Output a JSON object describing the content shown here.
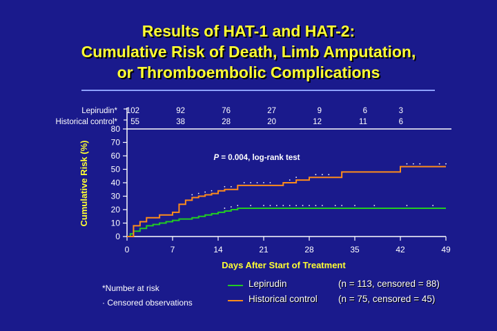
{
  "title": {
    "line1": "Results of HAT-1 and HAT-2:",
    "line2": "Cumulative Risk of Death, Limb Amputation,",
    "line3": "or Thromboembolic Complications"
  },
  "colors": {
    "background": "#1a1a8c",
    "title": "#ffff33",
    "lepirudin": "#22cc22",
    "historical": "#ff8c1a",
    "axis": "#ffffff",
    "rule": "#8ea2ff"
  },
  "risk_table": {
    "rows": [
      {
        "label": "Lepirudin*",
        "values": [
          "102",
          "92",
          "76",
          "27",
          "9",
          "6",
          "3"
        ]
      },
      {
        "label": "Historical control*",
        "values": [
          "55",
          "38",
          "28",
          "20",
          "12",
          "11",
          "6"
        ]
      }
    ]
  },
  "annotation": {
    "p_symbol": "P",
    "p_text": " = 0.004, log-rank test"
  },
  "notes": {
    "at_risk": "*Number at risk",
    "censored_marker": "·",
    "censored": "Censored observations"
  },
  "legend": [
    {
      "name": "Lepirudin",
      "n": "(n = 113, censored = 88)",
      "color": "#22cc22"
    },
    {
      "name": "Historical control",
      "n": "(n = 75, censored = 45)",
      "color": "#ff8c1a"
    }
  ],
  "chart_data": {
    "type": "line",
    "step": true,
    "xlabel": "Days After Start of Treatment",
    "ylabel": "Cumulative Risk (%)",
    "xlim": [
      0,
      49
    ],
    "ylim": [
      0,
      80
    ],
    "xticks": [
      0,
      7,
      14,
      21,
      28,
      35,
      42,
      49
    ],
    "yticks": [
      0,
      10,
      20,
      30,
      40,
      50,
      60,
      70,
      80
    ],
    "series": [
      {
        "name": "Lepirudin",
        "color": "#22cc22",
        "x": [
          0,
          0.5,
          1,
          2,
          3,
          4,
          5,
          6,
          7,
          8,
          10,
          11,
          12,
          13,
          14,
          15,
          16,
          17,
          18,
          21,
          49
        ],
        "y": [
          0,
          2,
          4,
          6,
          8,
          9,
          10,
          11,
          12,
          13,
          14,
          15,
          16,
          17,
          18,
          19,
          20,
          21,
          21,
          21,
          21
        ],
        "censored_x": [
          15,
          16,
          17,
          19,
          21,
          22,
          23,
          24,
          25,
          26,
          27,
          28,
          29,
          30,
          32,
          33,
          35,
          38,
          43,
          47
        ]
      },
      {
        "name": "Historical control",
        "color": "#ff8c1a",
        "x": [
          0,
          1,
          2,
          3,
          5,
          7,
          8,
          9,
          10,
          11,
          12,
          13,
          14,
          15,
          17,
          21,
          24,
          25,
          26,
          28,
          33,
          42,
          49
        ],
        "y": [
          0,
          8,
          11,
          14,
          16,
          18,
          24,
          27,
          29,
          30,
          31,
          32,
          34,
          35,
          38,
          38,
          40,
          40,
          42,
          44,
          48,
          52,
          52
        ],
        "censored_x": [
          10,
          11,
          12,
          13,
          15,
          16,
          18,
          19,
          20,
          21,
          22,
          25,
          26,
          29,
          30,
          31,
          43,
          44,
          45,
          48,
          49
        ]
      }
    ]
  }
}
